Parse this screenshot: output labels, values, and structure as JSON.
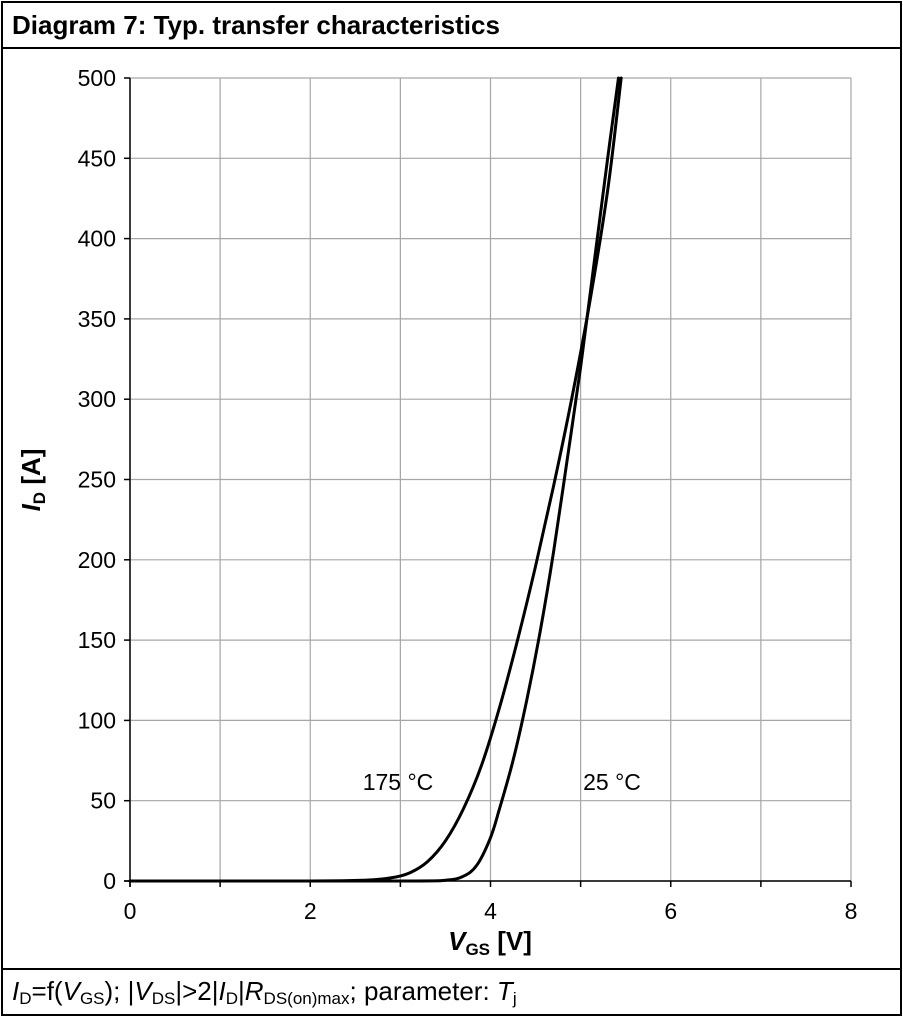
{
  "title": "Diagram 7: Typ. transfer characteristics",
  "footer": {
    "id": "I",
    "id_sub": "D",
    "eq": "=f(",
    "vgs": "V",
    "vgs_sub": "GS",
    "mid1": "); |",
    "vds": "V",
    "vds_sub": "DS",
    "mid2": "|>2|",
    "id2": "I",
    "id2_sub": "D",
    "mid3": "|",
    "r": "R",
    "r_sub": "DS(on)max",
    "mid4": "; parameter: ",
    "tj": "T",
    "tj_sub": "j"
  },
  "colors": {
    "line": "#000000",
    "grid": "#a6a6a6",
    "axis": "#000000"
  },
  "chart_data": {
    "type": "line",
    "title": "Diagram 7: Typ. transfer characteristics",
    "xlabel_main": "V",
    "xlabel_sub": "GS",
    "xlabel_unit": " [V]",
    "ylabel_main": "I",
    "ylabel_sub": "D",
    "ylabel_unit": " [A]",
    "xlim": [
      0,
      8
    ],
    "ylim": [
      0,
      500
    ],
    "xticks": [
      0,
      2,
      4,
      6,
      8
    ],
    "yticks": [
      0,
      50,
      100,
      150,
      200,
      250,
      300,
      350,
      400,
      450,
      500
    ],
    "grid": true,
    "series": [
      {
        "name": "175 °C",
        "x": [
          0,
          2.0,
          2.6,
          2.9,
          3.1,
          3.3,
          3.5,
          3.7,
          3.9,
          4.1,
          4.3,
          4.5,
          4.7,
          4.9,
          5.1,
          5.3,
          5.45
        ],
        "y": [
          0,
          0,
          0.5,
          2,
          5,
          12,
          25,
          45,
          72,
          108,
          150,
          196,
          246,
          300,
          360,
          430,
          500
        ]
      },
      {
        "name": "25 °C",
        "x": [
          0,
          3.0,
          3.5,
          3.7,
          3.85,
          4.0,
          4.1,
          4.25,
          4.4,
          4.55,
          4.7,
          4.85,
          5.0,
          5.15,
          5.3,
          5.42
        ],
        "y": [
          0,
          0,
          0.5,
          3,
          10,
          27,
          45,
          75,
          112,
          155,
          205,
          262,
          320,
          385,
          450,
          500
        ]
      }
    ]
  }
}
